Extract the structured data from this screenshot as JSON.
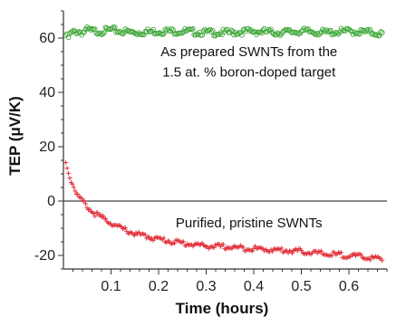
{
  "chart_data": {
    "type": "scatter",
    "xlabel": "Time (hours)",
    "ylabel": "TEP (μV/K)",
    "xlim": [
      0,
      0.68
    ],
    "ylim": [
      -25,
      70
    ],
    "xticks": [
      "0.1",
      "0.2",
      "0.3",
      "0.4",
      "0.5",
      "0.6"
    ],
    "yticks": [
      "-20",
      "0",
      "20",
      "40",
      "60"
    ],
    "reference_line_y": 0,
    "annotations": [
      {
        "text": "As prepared SWNTs from the",
        "x": 0.39,
        "y": 55
      },
      {
        "text": "1.5 at. % boron-doped target",
        "x": 0.39,
        "y": 47.5
      },
      {
        "text": "Purified, pristine SWNTs",
        "x": 0.39,
        "y": -8
      }
    ],
    "series": [
      {
        "marker": "circle",
        "color": "#3aa535",
        "x": [
          0.005,
          0.01,
          0.015,
          0.02,
          0.03,
          0.04,
          0.05,
          0.06,
          0.08,
          0.1,
          0.12,
          0.15,
          0.2,
          0.25,
          0.3,
          0.35,
          0.4,
          0.45,
          0.5,
          0.55,
          0.6,
          0.65,
          0.67
        ],
        "y": [
          61,
          60,
          61.5,
          62,
          62.5,
          62,
          63,
          62.5,
          62.5,
          63,
          62.5,
          62,
          62.5,
          62.5,
          62,
          62,
          62.5,
          62,
          62.5,
          62,
          62.5,
          62,
          61.5
        ]
      },
      {
        "marker": "plus",
        "color": "#e0303a",
        "x": [
          0.005,
          0.01,
          0.015,
          0.02,
          0.025,
          0.03,
          0.04,
          0.05,
          0.06,
          0.08,
          0.1,
          0.12,
          0.15,
          0.2,
          0.25,
          0.3,
          0.35,
          0.4,
          0.45,
          0.5,
          0.55,
          0.6,
          0.65,
          0.67
        ],
        "y": [
          14,
          11,
          8,
          6,
          4,
          2,
          0,
          -2,
          -4,
          -6,
          -8,
          -10,
          -12,
          -14,
          -15.5,
          -16.5,
          -17,
          -17.5,
          -18,
          -18.5,
          -19.5,
          -20,
          -21,
          -21.5
        ]
      }
    ]
  }
}
